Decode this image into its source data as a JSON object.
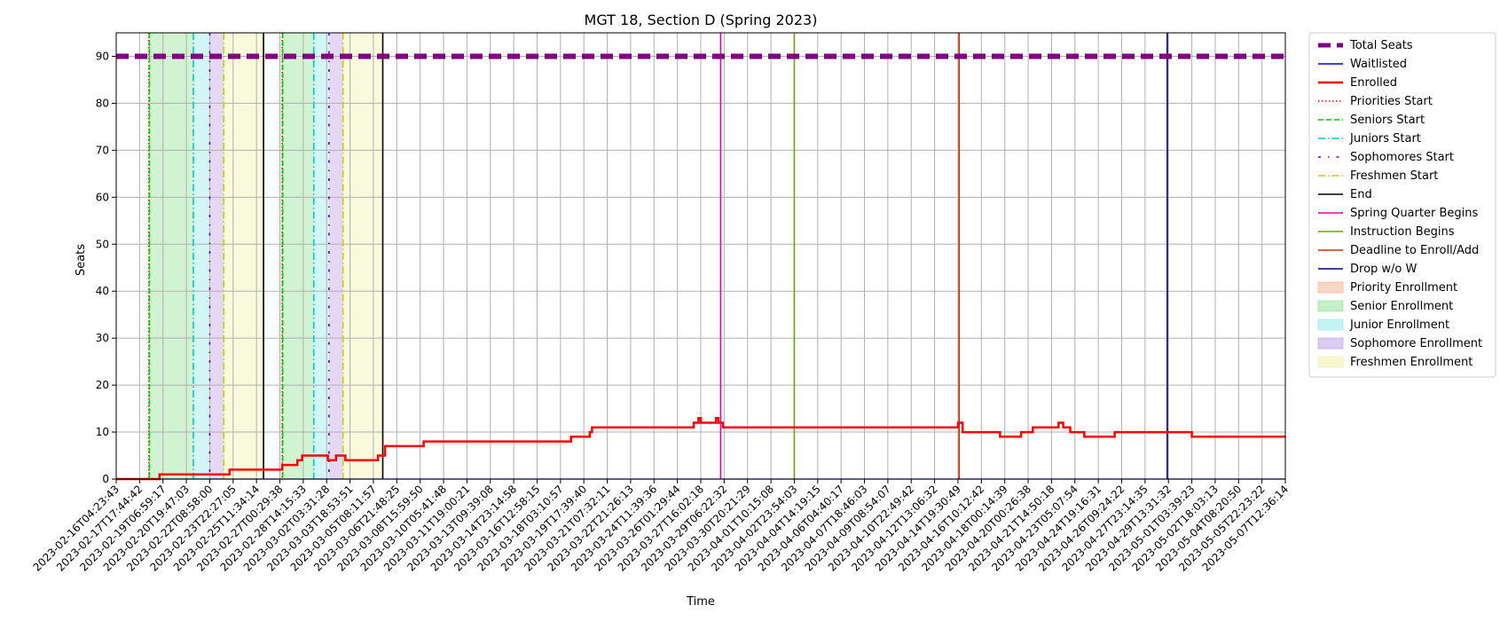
{
  "chart_data": {
    "type": "line",
    "title": "MGT 18, Section D (Spring 2023)",
    "xlabel": "Time",
    "ylabel": "Seats",
    "ylim": [
      0,
      95
    ],
    "yticks": [
      0,
      10,
      20,
      30,
      40,
      50,
      60,
      70,
      80,
      90
    ],
    "grid": true,
    "legend_position": "outside-right",
    "x_ticks": [
      "2023-02-16T04:23:43",
      "2023-02-17T17:44:42",
      "2023-02-19T06:59:17",
      "2023-02-20T19:47:03",
      "2023-02-22T08:58:00",
      "2023-02-23T22:27:05",
      "2023-02-25T11:34:14",
      "2023-02-27T00:29:38",
      "2023-02-28T14:15:33",
      "2023-03-02T03:31:28",
      "2023-03-03T18:53:51",
      "2023-03-05T08:11:57",
      "2023-03-06T21:48:25",
      "2023-03-08T15:59:50",
      "2023-03-10T05:41:48",
      "2023-03-11T19:00:21",
      "2023-03-13T09:39:08",
      "2023-03-14T23:14:58",
      "2023-03-16T12:58:15",
      "2023-03-18T03:10:57",
      "2023-03-19T17:39:40",
      "2023-03-21T07:32:11",
      "2023-03-22T21:26:13",
      "2023-03-24T11:39:36",
      "2023-03-26T01:29:44",
      "2023-03-27T16:02:18",
      "2023-03-29T06:22:32",
      "2023-03-30T20:21:29",
      "2023-04-01T10:15:08",
      "2023-04-02T23:54:03",
      "2023-04-04T14:19:15",
      "2023-04-06T04:40:17",
      "2023-04-07T18:46:03",
      "2023-04-09T08:54:07",
      "2023-04-10T22:49:42",
      "2023-04-12T13:06:32",
      "2023-04-14T19:30:49",
      "2023-04-16T10:12:42",
      "2023-04-18T00:14:39",
      "2023-04-20T00:26:38",
      "2023-04-21T14:50:18",
      "2023-04-23T05:07:54",
      "2023-04-24T19:16:31",
      "2023-04-26T09:24:22",
      "2023-04-27T23:14:35",
      "2023-04-29T13:31:32",
      "2023-05-01T03:39:23",
      "2023-05-02T18:03:13",
      "2023-05-04T08:20:50",
      "2023-05-05T22:23:22",
      "2023-05-07T12:36:14"
    ],
    "series": [
      {
        "name": "Total Seats",
        "color": "#800080",
        "style": "dashed-thick",
        "x": [
          0,
          50
        ],
        "y": [
          90,
          90
        ]
      },
      {
        "name": "Waitlisted",
        "color": "#0000ff",
        "style": "solid",
        "x": [
          0,
          50
        ],
        "y": [
          0,
          0
        ]
      },
      {
        "name": "Enrolled",
        "color": "#ff0000",
        "style": "solid-thick",
        "step": true,
        "x": [
          0,
          1.85,
          4.7,
          4.85,
          6.5,
          7.1,
          7.5,
          7.75,
          7.95,
          8.9,
          9.05,
          9.4,
          9.6,
          9.8,
          11.2,
          11.5,
          13.15,
          19.45,
          20.25,
          20.35,
          21.15,
          21.3,
          21.6,
          21.8,
          21.95,
          22.25,
          22.75,
          22.9,
          23.3,
          23.45,
          23.65,
          23.75,
          24.7,
          24.9,
          25,
          25.65,
          25.75,
          25.95,
          36.0,
          36.2,
          37.8,
          38.7,
          39.2,
          39.3,
          40.3,
          40.5,
          40.8,
          41.05,
          41.25,
          41.4,
          42.7,
          42.9,
          43.4,
          43.55,
          44.0,
          44.2,
          44.8,
          45.1,
          45.2,
          46.0,
          47.8,
          50
        ],
        "y": [
          0,
          1,
          1,
          2,
          2,
          3,
          3,
          4,
          5,
          5,
          4,
          5,
          5,
          4,
          5,
          7,
          8,
          9,
          10,
          11,
          11,
          11,
          11,
          11,
          11,
          11,
          11,
          11,
          11,
          11,
          11,
          11,
          12,
          13,
          12,
          13,
          12,
          11,
          12,
          10,
          9,
          10,
          11,
          11,
          12,
          11,
          10,
          10,
          10,
          9,
          10,
          10,
          10,
          10,
          10,
          10,
          10,
          10,
          10,
          9,
          9,
          9
        ]
      },
      {
        "name": "Priorities Start",
        "color": "#ff0000",
        "style": "dotted",
        "vline": [
          1.4,
          7.1
        ]
      },
      {
        "name": "Seniors Start",
        "color": "#00cc00",
        "style": "dashed",
        "vline": [
          1.42,
          7.12
        ]
      },
      {
        "name": "Juniors Start",
        "color": "#00cccc",
        "style": "dashdot",
        "vline": [
          3.3,
          8.45
        ]
      },
      {
        "name": "Sophomores Start",
        "color": "#6600cc",
        "style": "loosedashdot",
        "vline": [
          4.0,
          9.1
        ]
      },
      {
        "name": "Freshmen Start",
        "color": "#cccc00",
        "style": "dashdot",
        "vline": [
          4.6,
          9.7
        ]
      },
      {
        "name": "End",
        "color": "#000000",
        "style": "solid",
        "vline": [
          6.3,
          11.4
        ]
      },
      {
        "name": "Spring Quarter Begins",
        "color": "#e600ac",
        "style": "solid",
        "vline": [
          25.85
        ]
      },
      {
        "name": "Instruction Begins",
        "color": "#66aa00",
        "style": "solid",
        "vline": [
          29.0
        ]
      },
      {
        "name": "Deadline to Enroll/Add",
        "color": "#cc3300",
        "style": "solid",
        "vline": [
          36.05
        ]
      },
      {
        "name": "Drop w/o W",
        "color": "#000080",
        "style": "solid",
        "vline": [
          44.95
        ]
      },
      {
        "name": "Priority Enrollment",
        "color": "#f4a582",
        "type": "span",
        "spans": [
          [
            1.4,
            1.42
          ],
          [
            7.1,
            7.12
          ]
        ]
      },
      {
        "name": "Senior Enrollment",
        "color": "#7fdc7f",
        "type": "span",
        "spans": [
          [
            1.42,
            3.3
          ],
          [
            7.12,
            8.45
          ]
        ]
      },
      {
        "name": "Junior Enrollment",
        "color": "#7fe5e5",
        "type": "span",
        "spans": [
          [
            3.3,
            4.0
          ],
          [
            8.45,
            9.1
          ]
        ]
      },
      {
        "name": "Sophomore Enrollment",
        "color": "#b28fe5",
        "type": "span",
        "spans": [
          [
            4.0,
            4.6
          ],
          [
            9.1,
            9.7
          ]
        ]
      },
      {
        "name": "Freshmen Enrollment",
        "color": "#eeee99",
        "type": "span",
        "spans": [
          [
            4.6,
            6.3
          ],
          [
            9.7,
            11.4
          ]
        ]
      }
    ]
  }
}
